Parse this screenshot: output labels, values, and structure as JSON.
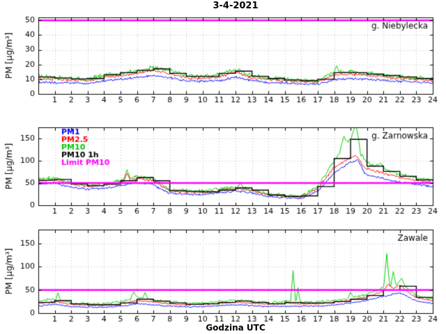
{
  "chart_data": {
    "type": "line",
    "title": "3-4-2021",
    "xlabel": "Godzina UTC",
    "ylabel": "PM [µg/m³]",
    "x_range_hours": [
      0,
      24
    ],
    "x_ticks": [
      1,
      2,
      3,
      4,
      5,
      6,
      7,
      8,
      9,
      10,
      11,
      12,
      13,
      14,
      15,
      16,
      17,
      18,
      19,
      20,
      21,
      22,
      23,
      24
    ],
    "legend": [
      "PM1",
      "PM2.5",
      "PM10",
      "PM10 1h",
      "Limit PM10"
    ],
    "legend_position": "top-left-middle-panel",
    "grid": true,
    "limit_pm10": 50,
    "colors": {
      "PM1": "#0000ff",
      "PM2.5": "#ff0000",
      "PM10": "#00cc00",
      "PM10 1h": "#000000",
      "Limit PM10": "#ff00ff",
      "grid": "#bbbbbb",
      "axis": "#000000"
    },
    "panels": [
      {
        "station": "g. Niebylecka",
        "ylim": [
          0,
          52
        ],
        "y_ticks": [
          0,
          10,
          20,
          30,
          40,
          50
        ],
        "anchor_hours_step": 1,
        "series": {
          "pm1": {
            "label": "PM1",
            "noise": 1.0,
            "anchors": [
              8,
              7.5,
              7.5,
              7,
              9,
              10,
              11,
              12.5,
              11,
              9,
              8.5,
              9,
              11.5,
              9,
              8,
              7.5,
              7,
              6.5,
              10,
              10.5,
              10,
              9,
              8.5,
              8,
              7.5
            ]
          },
          "pm25": {
            "label": "PM2.5",
            "noise": 1.2,
            "anchors": [
              10.5,
              10,
              9.5,
              9,
              11.5,
              12.5,
              14,
              16,
              14,
              11,
              10.5,
              11.5,
              15,
              11,
              10,
              9,
              8.5,
              8,
              13,
              13.5,
              12.5,
              11.5,
              10.5,
              10,
              9
            ]
          },
          "pm10": {
            "label": "PM10",
            "noise": 1.8,
            "anchors": [
              12,
              11,
              10.5,
              10,
              13,
              14,
              15.5,
              18,
              16,
              12.5,
              12,
              13,
              17,
              12.5,
              11,
              10,
              9.5,
              9,
              15,
              15,
              14,
              13,
              12,
              11,
              10
            ],
            "spikes": [
              {
                "x": 18.15,
                "v": 19,
                "w": 0.15
              }
            ]
          }
        },
        "pm10_1h_steps": [
          11.5,
          10.8,
          10.2,
          10.5,
          13,
          14.5,
          16,
          17,
          14,
          12,
          12,
          14,
          15.5,
          12,
          10.5,
          9.5,
          9,
          10,
          14.5,
          14.5,
          13.5,
          12.5,
          11.5,
          10.5
        ]
      },
      {
        "station": "g. Zarnowska",
        "show_legend": true,
        "ylim": [
          0,
          175
        ],
        "y_ticks": [
          0,
          50,
          100,
          150
        ],
        "anchor_hours_step": 1,
        "series": {
          "pm1": {
            "label": "PM1",
            "noise": 3.0,
            "anchors": [
              47,
              50,
              40,
              36,
              38,
              44,
              51,
              46,
              27,
              25,
              24,
              28,
              32,
              28,
              19,
              17,
              15,
              32,
              72,
              98,
              68,
              60,
              52,
              47,
              42
            ],
            "spikes": [
              {
                "x": 19.4,
                "v": 103,
                "w": 0.4
              }
            ]
          },
          "pm25": {
            "label": "PM2.5",
            "noise": 3.5,
            "anchors": [
              55,
              58,
              47,
              42,
              45,
              52,
              60,
              55,
              32,
              30,
              29,
              33,
              38,
              33,
              23,
              20,
              18,
              38,
              85,
              108,
              82,
              72,
              63,
              56,
              50
            ],
            "spikes": [
              {
                "x": 5.4,
                "v": 72,
                "w": 0.2
              },
              {
                "x": 19.3,
                "v": 112,
                "w": 0.4
              }
            ]
          },
          "pm10": {
            "label": "PM10",
            "noise": 5.0,
            "anchors": [
              58,
              62,
              50,
              45,
              48,
              56,
              65,
              60,
              35,
              33,
              32,
              36,
              41,
              36,
              25,
              22,
              20,
              42,
              100,
              150,
              95,
              82,
              70,
              62,
              55
            ],
            "spikes": [
              {
                "x": 5.4,
                "v": 80,
                "w": 0.2
              },
              {
                "x": 12.3,
                "v": 50,
                "w": 0.2
              },
              {
                "x": 17.4,
                "v": 65,
                "w": 0.2
              },
              {
                "x": 18.6,
                "v": 155,
                "w": 0.25
              },
              {
                "x": 19.3,
                "v": 186,
                "w": 0.3
              },
              {
                "x": 20.8,
                "v": 95,
                "w": 0.3
              }
            ]
          }
        },
        "pm10_1h_steps": [
          56,
          58,
          48,
          44,
          47,
          55,
          62,
          55,
          33,
          31,
          30,
          34,
          39,
          34,
          23,
          20,
          21,
          42,
          105,
          148,
          88,
          76,
          65,
          57
        ]
      },
      {
        "station": "Zawale",
        "ylim": [
          0,
          180
        ],
        "y_ticks": [
          0,
          50,
          100,
          150
        ],
        "anchor_hours_step": 1,
        "series": {
          "pm1": {
            "label": "PM1",
            "noise": 1.8,
            "anchors": [
              15,
              19,
              14,
              13,
              13,
              15,
              20,
              18,
              15,
              14,
              14,
              16,
              18,
              16,
              14,
              15,
              15,
              15,
              17,
              22,
              27,
              36,
              44,
              26,
              21
            ]
          },
          "pm25": {
            "label": "PM2.5",
            "noise": 2.0,
            "anchors": [
              21,
              25,
              19,
              17,
              17,
              20,
              27,
              24,
              20,
              18,
              19,
              21,
              24,
              21,
              19,
              21,
              20,
              20,
              23,
              28,
              35,
              48,
              58,
              33,
              27
            ],
            "spikes": [
              {
                "x": 21.3,
                "v": 62,
                "w": 0.3
              },
              {
                "x": 22.0,
                "v": 60,
                "w": 0.3
              }
            ]
          },
          "pm10": {
            "label": "PM10",
            "noise": 3.5,
            "anchors": [
              26,
              30,
              22,
              20,
              20,
              25,
              34,
              29,
              24,
              21,
              22,
              25,
              28,
              25,
              22,
              26,
              24,
              24,
              27,
              33,
              40,
              55,
              65,
              38,
              30
            ],
            "spikes": [
              {
                "x": 1.2,
                "v": 44,
                "w": 0.15
              },
              {
                "x": 5.8,
                "v": 46,
                "w": 0.2
              },
              {
                "x": 6.5,
                "v": 45,
                "w": 0.15
              },
              {
                "x": 15.5,
                "v": 92,
                "w": 0.15
              },
              {
                "x": 15.8,
                "v": 55,
                "w": 0.12
              },
              {
                "x": 19.0,
                "v": 45,
                "w": 0.15
              },
              {
                "x": 21.2,
                "v": 128,
                "w": 0.18
              },
              {
                "x": 21.6,
                "v": 90,
                "w": 0.15
              },
              {
                "x": 22.1,
                "v": 75,
                "w": 0.2
              }
            ]
          }
        },
        "pm10_1h_steps": [
          23,
          27,
          20,
          18,
          18,
          22,
          30,
          26,
          22,
          19,
          20,
          23,
          26,
          23,
          20,
          23,
          22,
          22,
          25,
          30,
          38,
          50,
          58,
          34
        ]
      }
    ]
  }
}
